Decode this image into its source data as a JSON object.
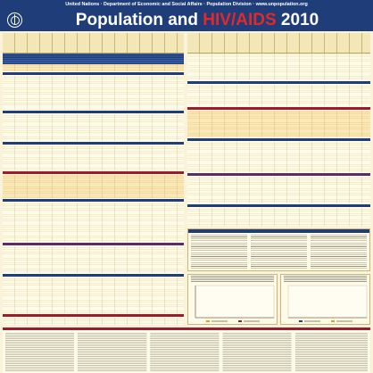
{
  "header": {
    "org_line": "United Nations  ·  Department of Economic and Social Affairs  ·  Population Division  ·  www.unpopulation.org",
    "title_pre": "Population and ",
    "title_highlight": "HIV/AIDS",
    "title_post": " 2010"
  },
  "colors": {
    "navy": "#1f3d78",
    "red_accent": "#e02a2a",
    "band_red": "#9b1c2c",
    "bar_gold": "#d9a420",
    "bar_red": "#9b1c2c",
    "paper": "#fbf3d9"
  },
  "icons": {
    "logo": "un-emblem-icon"
  },
  "chart_data": [
    {
      "type": "bar",
      "title": "",
      "series": [
        {
          "name": "",
          "values": []
        },
        {
          "name": "",
          "values": []
        }
      ]
    },
    {
      "type": "bar",
      "title": ""
    }
  ]
}
